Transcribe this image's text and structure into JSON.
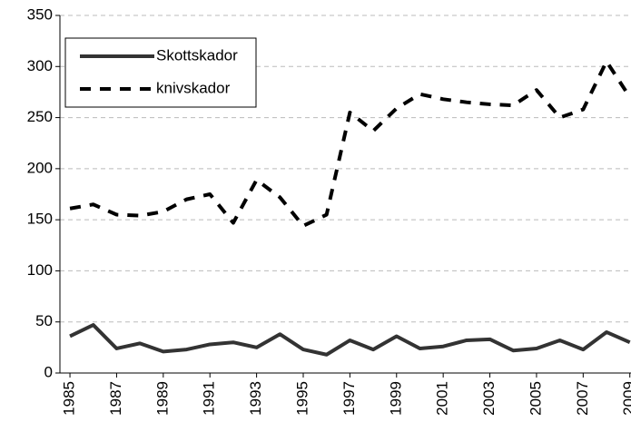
{
  "chart_data": {
    "type": "line",
    "x": [
      1985,
      1986,
      1987,
      1988,
      1989,
      1990,
      1991,
      1992,
      1993,
      1994,
      1995,
      1996,
      1997,
      1998,
      1999,
      2000,
      2001,
      2002,
      2003,
      2004,
      2005,
      2006,
      2007,
      2008,
      2009
    ],
    "series": [
      {
        "name": "Skottskador",
        "color": "#333333",
        "dash": false,
        "values": [
          36,
          47,
          24,
          29,
          21,
          23,
          28,
          30,
          25,
          38,
          23,
          18,
          32,
          23,
          36,
          24,
          26,
          32,
          33,
          22,
          24,
          32,
          23,
          40,
          30
        ]
      },
      {
        "name": "knivskador",
        "color": "#000000",
        "dash": true,
        "values": [
          161,
          165,
          155,
          154,
          158,
          170,
          175,
          147,
          189,
          172,
          144,
          155,
          255,
          237,
          259,
          273,
          268,
          265,
          263,
          262,
          277,
          250,
          258,
          305,
          270
        ]
      }
    ],
    "xlim": [
      1984.57,
      2009.05
    ],
    "xticks": [
      1985,
      1987,
      1989,
      1991,
      1993,
      1995,
      1997,
      1999,
      2001,
      2003,
      2005,
      2007,
      2009
    ],
    "ylim": [
      0,
      350
    ],
    "yticks": [
      0,
      50,
      100,
      150,
      200,
      250,
      300,
      350
    ],
    "grid": true,
    "legend": "upper left"
  }
}
